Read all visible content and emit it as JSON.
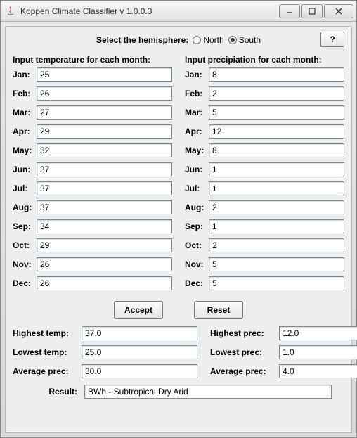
{
  "window": {
    "title": "Koppen Climate Classifier v 1.0.0.3"
  },
  "hemisphere": {
    "label": "Select the hemisphere:",
    "north_label": "North",
    "south_label": "South",
    "selected": "South"
  },
  "help_label": "?",
  "headers": {
    "temp": "Input temperature for each month:",
    "prec": "Input precipiation for each month:"
  },
  "months": [
    "Jan",
    "Feb",
    "Mar",
    "Apr",
    "May",
    "Jun",
    "Jul",
    "Aug",
    "Sep",
    "Oct",
    "Nov",
    "Dec"
  ],
  "temp": {
    "Jan": "25",
    "Feb": "26",
    "Mar": "27",
    "Apr": "29",
    "May": "32",
    "Jun": "37",
    "Jul": "37",
    "Aug": "37",
    "Sep": "34",
    "Oct": "29",
    "Nov": "26",
    "Dec": "26"
  },
  "prec": {
    "Jan": "8",
    "Feb": "2",
    "Mar": "5",
    "Apr": "12",
    "May": "8",
    "Jun": "1",
    "Jul": "1",
    "Aug": "2",
    "Sep": "1",
    "Oct": "2",
    "Nov": "5",
    "Dec": "5"
  },
  "buttons": {
    "accept": "Accept",
    "reset": "Reset"
  },
  "stats": {
    "highest_temp_label": "Highest temp:",
    "lowest_temp_label": "Lowest temp:",
    "average_temp_label": "Average prec:",
    "highest_prec_label": "Highest prec:",
    "lowest_prec_label": "Lowest prec:",
    "average_prec_label": "Average prec:",
    "highest_temp": "37.0",
    "lowest_temp": "25.0",
    "average_temp": "30.0",
    "highest_prec": "12.0",
    "lowest_prec": "1.0",
    "average_prec": "4.0"
  },
  "result": {
    "label": "Result:",
    "value": "BWh - Subtropical Dry Arid"
  },
  "colors": {
    "panel_bg": "#eeeeee",
    "input_border": "#7a8a99",
    "button_border": "#7a7a7a"
  }
}
